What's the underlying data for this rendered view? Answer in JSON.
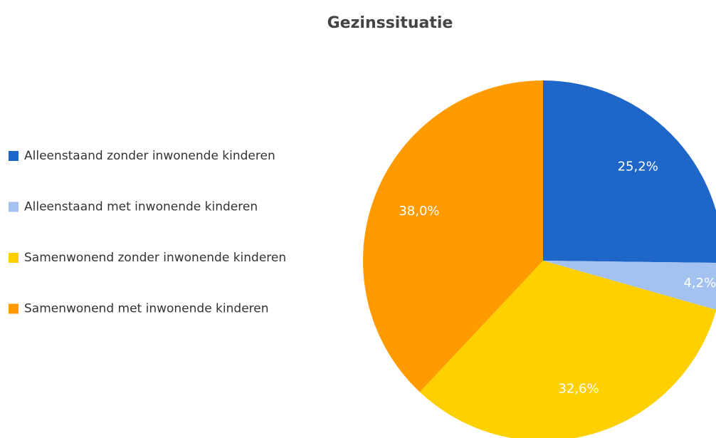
{
  "chart_data": {
    "type": "pie",
    "title": "Gezinssituatie",
    "categories": [
      "Alleenstaand zonder inwonende kinderen",
      "Alleenstaand met inwonende kinderen",
      "Samenwonend zonder inwonende kinderen",
      "Samenwonend met inwonende kinderen"
    ],
    "values": [
      25.2,
      4.2,
      32.6,
      38.0
    ],
    "value_labels": [
      "25,2%",
      "4,2%",
      "32,6%",
      "38,0%"
    ],
    "colors": [
      "#1f66c9",
      "#a4c2f0",
      "#ffd000",
      "#ff9a00"
    ],
    "legend": "left"
  }
}
